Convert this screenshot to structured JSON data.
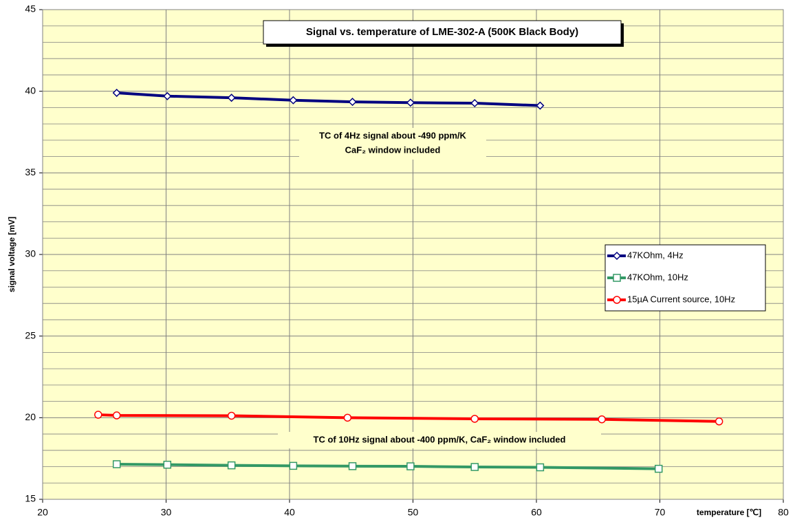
{
  "chart_data": {
    "type": "line",
    "title": "Signal vs. temperature of LME-302-A (500K Black Body)",
    "xlabel": "temperature [℃]",
    "ylabel": "signal voltage [mV]",
    "annotations": [
      "TC of 4Hz signal about -490 ppm/K",
      "CaF₂ window included",
      "TC of 10Hz signal about -400 ppm/K, CaF₂ window included"
    ],
    "xlim": [
      20,
      80
    ],
    "xticks": [
      20,
      30,
      40,
      50,
      60,
      70,
      80
    ],
    "ylim": [
      15,
      45
    ],
    "yticks": [
      15,
      20,
      25,
      30,
      35,
      40,
      45
    ],
    "y_minor_ticks": [
      16,
      17,
      18,
      19,
      21,
      22,
      23,
      24,
      26,
      27,
      28,
      29,
      31,
      32,
      33,
      34,
      36,
      37,
      38,
      39,
      41,
      42,
      43,
      44
    ],
    "grid": true,
    "background": "#ffffcc",
    "legend": "right",
    "series": [
      {
        "name": "47KOhm, 4Hz",
        "color": "#000080",
        "marker": "diamond",
        "x": [
          26.0,
          30.1,
          35.3,
          40.3,
          45.1,
          49.8,
          55.0,
          60.3
        ],
        "values": [
          39.9,
          39.7,
          39.6,
          39.45,
          39.35,
          39.3,
          39.27,
          39.12
        ]
      },
      {
        "name": "47KOhm, 10Hz",
        "color": "#339966",
        "marker": "square",
        "x": [
          26.0,
          30.1,
          35.3,
          40.3,
          45.1,
          49.8,
          55.0,
          60.3,
          69.9
        ],
        "values": [
          17.15,
          17.12,
          17.08,
          17.05,
          17.03,
          17.02,
          16.98,
          16.96,
          16.87
        ]
      },
      {
        "name": "15µA Current source, 10Hz",
        "color": "#ff0000",
        "marker": "circle",
        "x": [
          24.5,
          26.0,
          35.3,
          44.7,
          55.0,
          65.3,
          74.8
        ],
        "values": [
          20.18,
          20.14,
          20.12,
          20.0,
          19.93,
          19.9,
          19.77
        ]
      }
    ]
  }
}
